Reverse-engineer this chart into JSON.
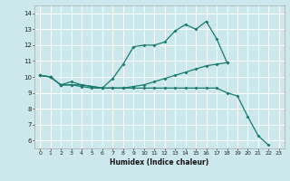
{
  "xlabel": "Humidex (Indice chaleur)",
  "background_color": "#cce8ec",
  "grid_color": "#e8f8fa",
  "line_color": "#1a7a6e",
  "xlim": [
    -0.5,
    23.5
  ],
  "ylim": [
    5.5,
    14.5
  ],
  "xticks": [
    0,
    1,
    2,
    3,
    4,
    5,
    6,
    7,
    8,
    9,
    10,
    11,
    12,
    13,
    14,
    15,
    16,
    17,
    18,
    19,
    20,
    21,
    22,
    23
  ],
  "yticks": [
    6,
    7,
    8,
    9,
    10,
    11,
    12,
    13,
    14
  ],
  "lines": [
    {
      "x": [
        0,
        1,
        2,
        3,
        4,
        5,
        6,
        7,
        8,
        9,
        10,
        11,
        12,
        13,
        14,
        15,
        16,
        17,
        18
      ],
      "y": [
        10.1,
        10.0,
        9.5,
        9.7,
        9.5,
        9.4,
        9.3,
        9.9,
        10.8,
        11.9,
        12.0,
        12.0,
        12.2,
        12.9,
        13.3,
        13.0,
        13.5,
        12.4,
        10.9
      ]
    },
    {
      "x": [
        0,
        1,
        2,
        3,
        4,
        5,
        6,
        7,
        8,
        9,
        10,
        11,
        12,
        13,
        14,
        15,
        16,
        17,
        18
      ],
      "y": [
        10.1,
        10.0,
        9.5,
        9.5,
        9.5,
        9.4,
        9.3,
        9.3,
        9.3,
        9.4,
        9.5,
        9.7,
        9.9,
        10.1,
        10.3,
        10.5,
        10.7,
        10.8,
        10.9
      ]
    },
    {
      "x": [
        0,
        1,
        2,
        3,
        4,
        5,
        6,
        7,
        8,
        9,
        10,
        11,
        12,
        13,
        14,
        15,
        16,
        17,
        18,
        19,
        20,
        21,
        22
      ],
      "y": [
        10.1,
        10.0,
        9.5,
        9.5,
        9.4,
        9.3,
        9.3,
        9.3,
        9.3,
        9.3,
        9.3,
        9.3,
        9.3,
        9.3,
        9.3,
        9.3,
        9.3,
        9.3,
        9.0,
        8.8,
        7.5,
        6.3,
        5.7
      ]
    }
  ]
}
